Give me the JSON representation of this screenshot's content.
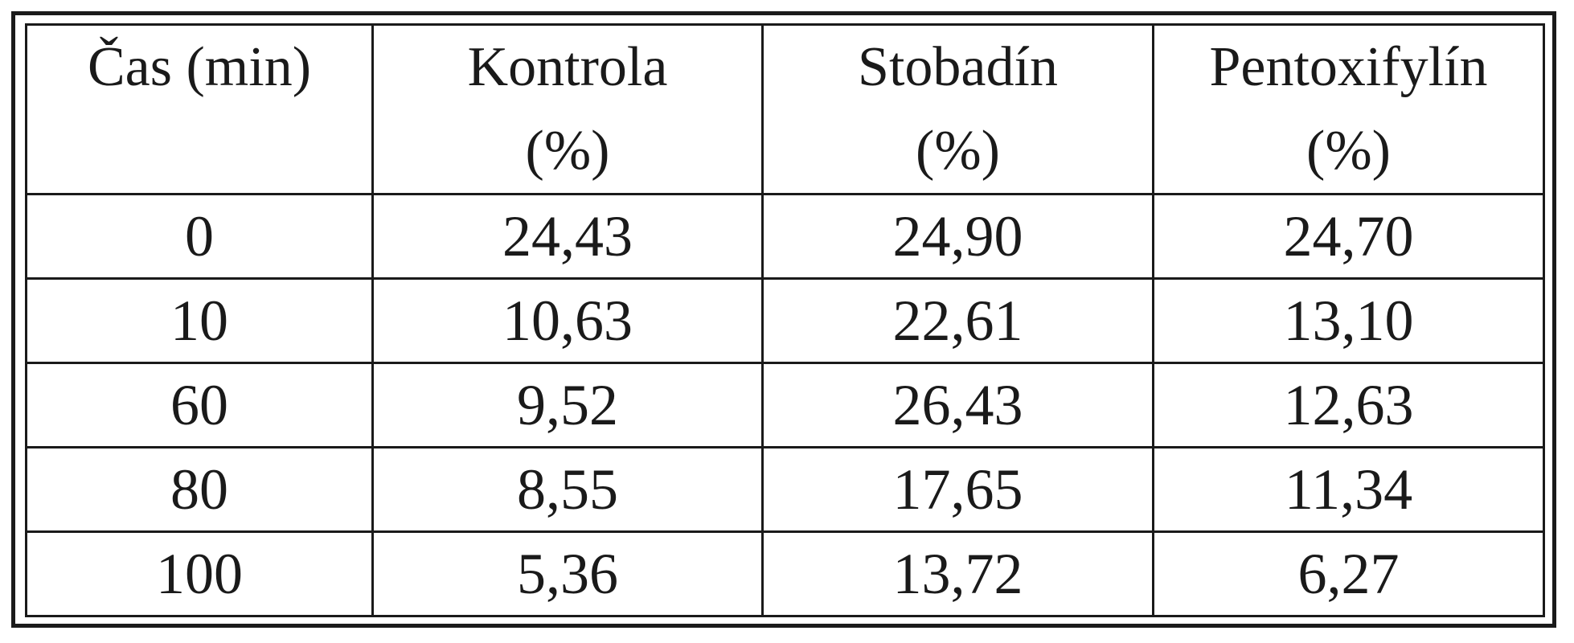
{
  "table": {
    "columns": [
      {
        "line1": "Čas (min)",
        "line2": ""
      },
      {
        "line1": "Kontrola",
        "line2": "(%)"
      },
      {
        "line1": "Stobadín",
        "line2": "(%)"
      },
      {
        "line1": "Pentoxifylín",
        "line2": "(%)"
      }
    ],
    "rows": [
      [
        "0",
        "24,43",
        "24,90",
        "24,70"
      ],
      [
        "10",
        "10,63",
        "22,61",
        "13,10"
      ],
      [
        "60",
        "9,52",
        "26,43",
        "12,63"
      ],
      [
        "80",
        "8,55",
        "17,65",
        "11,34"
      ],
      [
        "100",
        "5,36",
        "13,72",
        "6,27"
      ]
    ]
  }
}
